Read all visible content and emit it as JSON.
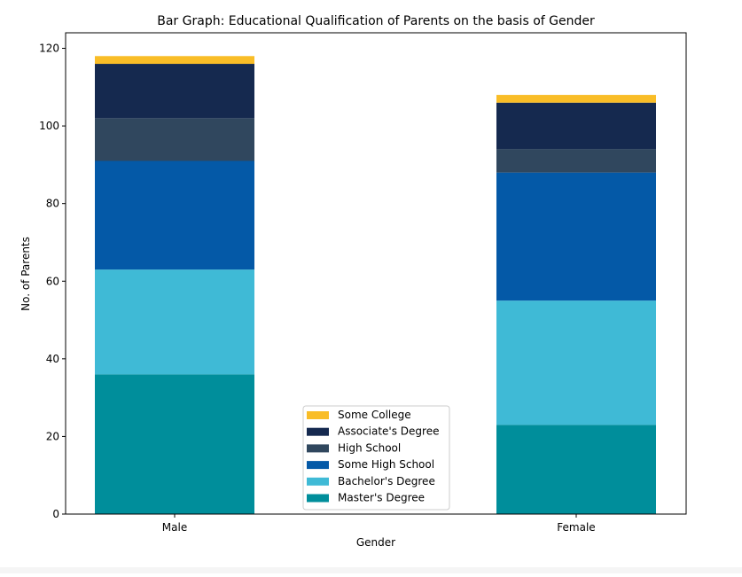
{
  "chart_data": {
    "type": "bar",
    "stacked": true,
    "title": "Bar Graph: Educational Qualification of Parents on the basis of Gender",
    "xlabel": "Gender",
    "ylabel": "No. of Parents",
    "categories": [
      "Male",
      "Female"
    ],
    "ylim": [
      0,
      124
    ],
    "yticks": [
      0,
      20,
      40,
      60,
      80,
      100,
      120
    ],
    "grid": false,
    "legend_position": "bottom-center",
    "series": [
      {
        "name": "Master's Degree",
        "color": "#008e9b",
        "values": [
          36,
          23
        ]
      },
      {
        "name": "Bachelor's Degree",
        "color": "#3fbad6",
        "values": [
          27,
          32
        ]
      },
      {
        "name": "Some High School",
        "color": "#0459a7",
        "values": [
          28,
          33
        ]
      },
      {
        "name": "High School",
        "color": "#30475e",
        "values": [
          11,
          6
        ]
      },
      {
        "name": "Associate's Degree",
        "color": "#15294f",
        "values": [
          14,
          12
        ]
      },
      {
        "name": "Some College",
        "color": "#f9bd27",
        "values": [
          2,
          2
        ]
      }
    ]
  }
}
